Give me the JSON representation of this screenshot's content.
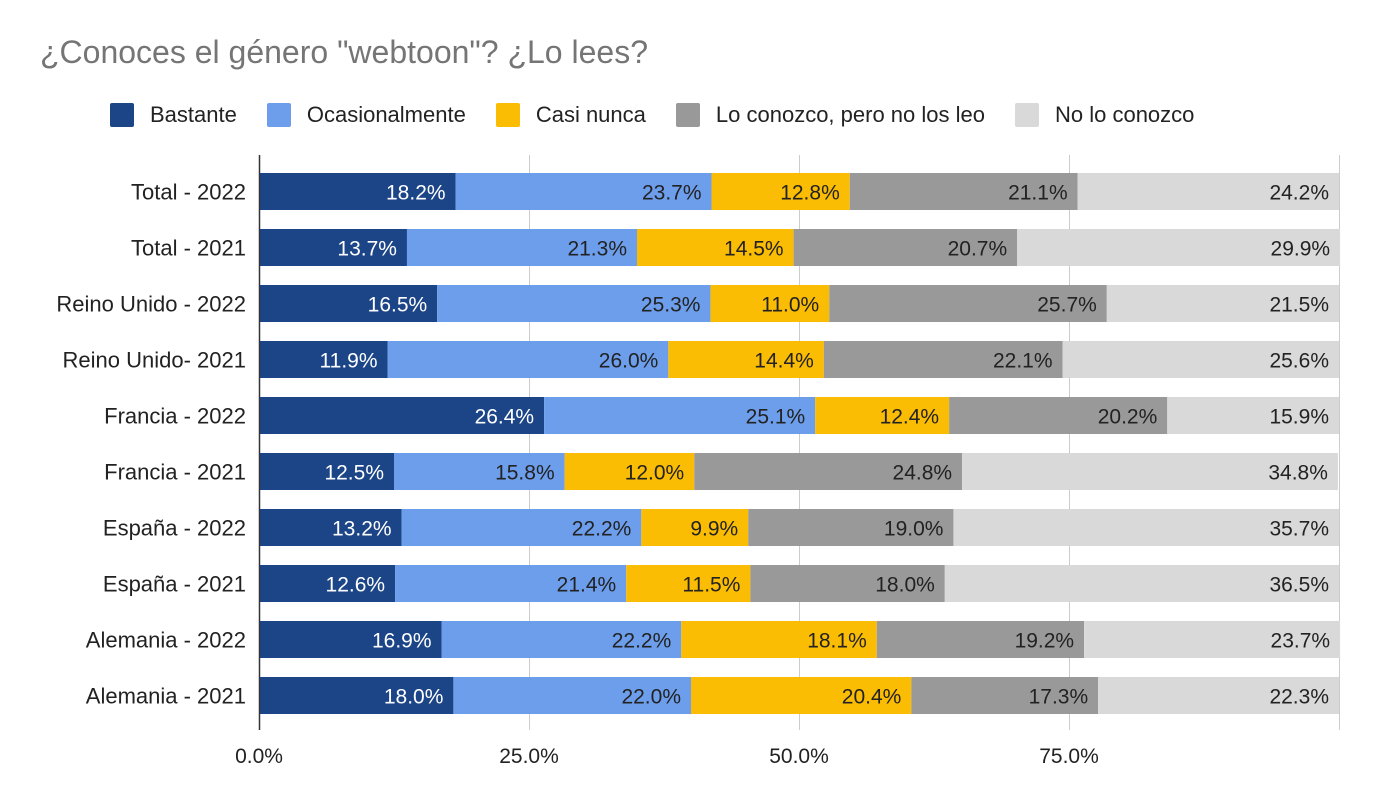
{
  "chart_data": {
    "type": "bar",
    "orientation": "horizontal",
    "stacked": true,
    "title": "¿Conoces el género \"webtoon\"? ¿Lo lees?",
    "categories": [
      "Total - 2022",
      "Total - 2021",
      "Reino Unido - 2022",
      "Reino Unido- 2021",
      "Francia - 2022",
      "Francia - 2021",
      "España - 2022",
      "España - 2021",
      "Alemania - 2022",
      "Alemania - 2021"
    ],
    "series": [
      {
        "name": "Bastante",
        "color": "#1c4587",
        "label_color": "#ffffff",
        "values": [
          18.2,
          13.7,
          16.5,
          11.9,
          26.4,
          12.5,
          13.2,
          12.6,
          16.9,
          18.0
        ],
        "labels": [
          "18.2%",
          "13.7%",
          "16.5%",
          "11.9%",
          "26.4%",
          "12.5%",
          "13.2%",
          "12.6%",
          "16.9%",
          "18.0%"
        ]
      },
      {
        "name": "Ocasionalmente",
        "color": "#6d9eeb",
        "label_color": "#222222",
        "values": [
          23.7,
          21.3,
          25.3,
          26.0,
          25.1,
          15.8,
          22.2,
          21.4,
          22.2,
          22.0
        ],
        "labels": [
          "23.7%",
          "21.3%",
          "25.3%",
          "26.0%",
          "25.1%",
          "15.8%",
          "22.2%",
          "21.4%",
          "22.2%",
          "22.0%"
        ]
      },
      {
        "name": "Casi nunca",
        "color": "#fbbc04",
        "label_color": "#222222",
        "values": [
          12.8,
          14.5,
          11.0,
          14.4,
          12.4,
          12.0,
          9.9,
          11.5,
          18.1,
          20.4
        ],
        "labels": [
          "12.8%",
          "14.5%",
          "11.0%",
          "14.4%",
          "12.4%",
          "12.0%",
          "9.9%",
          "11.5%",
          "18.1%",
          "20.4%"
        ]
      },
      {
        "name": "Lo conozco, pero no los leo",
        "color": "#999999",
        "label_color": "#222222",
        "values": [
          21.1,
          20.7,
          25.7,
          22.1,
          20.2,
          24.8,
          19.0,
          18.0,
          19.2,
          17.3
        ],
        "labels": [
          "21.1%",
          "20.7%",
          "25.7%",
          "22.1%",
          "20.2%",
          "24.8%",
          "19.0%",
          "18.0%",
          "19.2%",
          "17.3%"
        ]
      },
      {
        "name": "No lo conozco",
        "color": "#d9d9d9",
        "label_color": "#222222",
        "values": [
          24.2,
          29.9,
          21.5,
          25.6,
          15.9,
          34.8,
          35.7,
          36.5,
          23.7,
          22.3
        ],
        "labels": [
          "24.2%",
          "29.9%",
          "21.5%",
          "25.6%",
          "15.9%",
          "34.8%",
          "35.7%",
          "36.5%",
          "23.7%",
          "22.3%"
        ]
      }
    ],
    "x_ticks": [
      0,
      25,
      50,
      75
    ],
    "x_tick_labels": [
      "0.0%",
      "25.0%",
      "50.0%",
      "75.0%"
    ],
    "xlim": [
      0,
      100
    ],
    "grid": true,
    "legend_position": "top"
  }
}
